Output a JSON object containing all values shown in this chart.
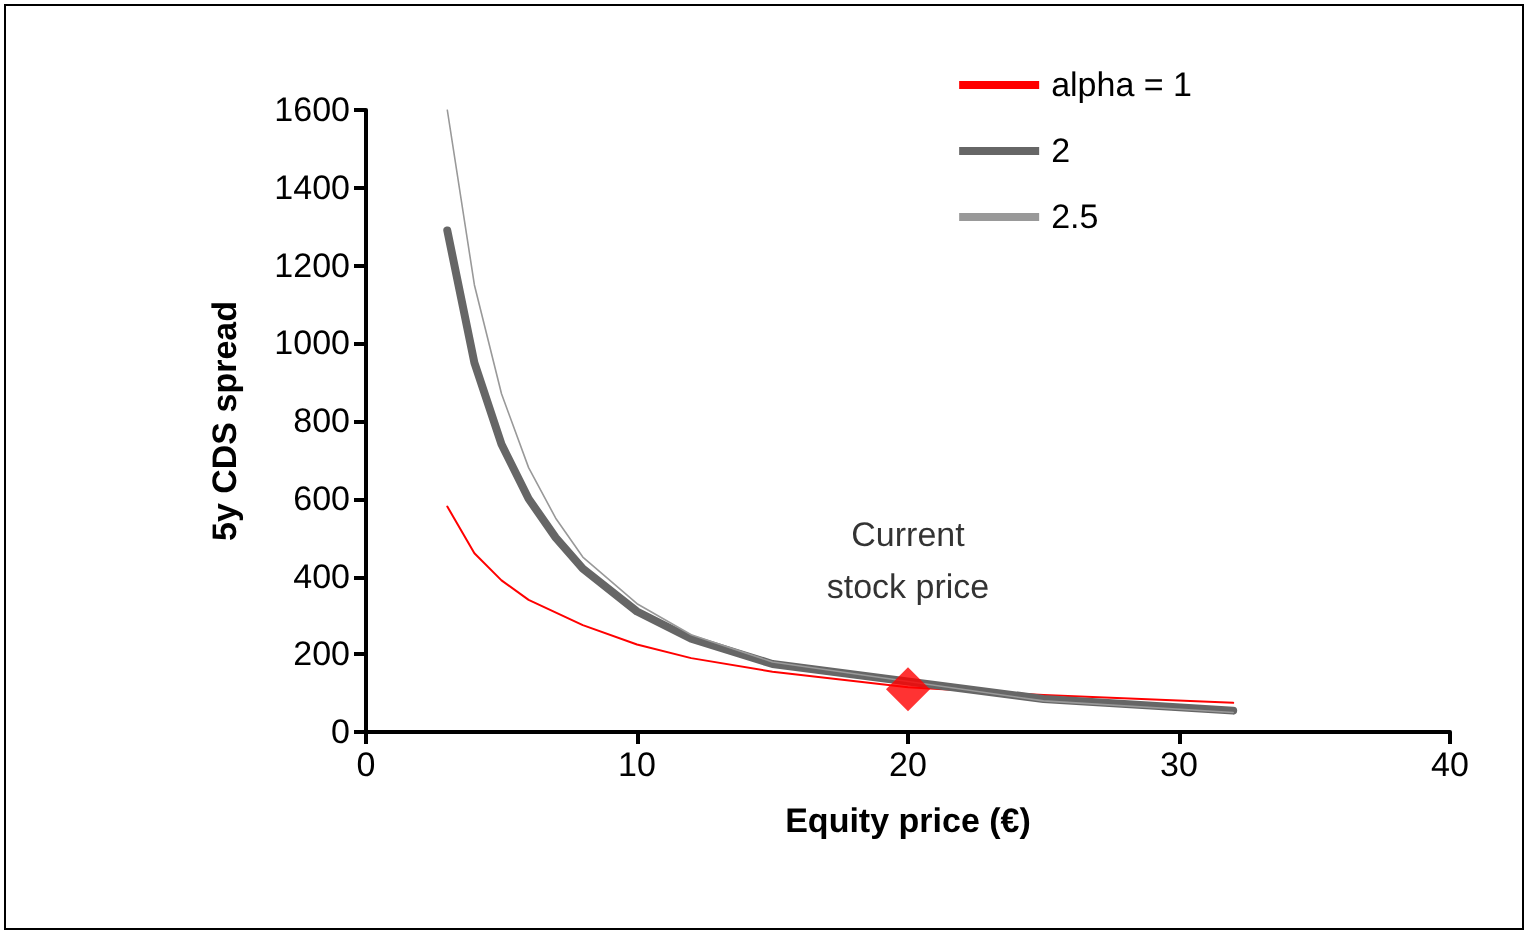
{
  "chart_data": {
    "type": "line",
    "xlabel": "Equity price (€)",
    "ylabel": "5y CDS spread",
    "xlim": [
      0,
      40
    ],
    "xticks": [
      0,
      10,
      20,
      30,
      40
    ],
    "ylim": [
      0,
      1600
    ],
    "yticks": [
      0,
      200,
      400,
      600,
      800,
      1000,
      1200,
      1400,
      1600
    ],
    "grid": false,
    "legend": "top right",
    "marker": "none",
    "line_style": "solid",
    "series": [
      {
        "name": "alpha = 1",
        "color": "#ff0000",
        "x": [
          3,
          4,
          5,
          6,
          8,
          10,
          12,
          15,
          20,
          25,
          32
        ],
        "values": [
          580,
          460,
          390,
          340,
          275,
          225,
          190,
          155,
          115,
          95,
          75
        ]
      },
      {
        "name": "2",
        "color": "#666666",
        "x": [
          3,
          4,
          5,
          6,
          7,
          8,
          10,
          12,
          15,
          25,
          32
        ],
        "values": [
          1290,
          950,
          740,
          600,
          500,
          420,
          310,
          240,
          175,
          85,
          55
        ]
      },
      {
        "name": "2.5",
        "color": "#999999",
        "x": [
          3,
          4,
          5,
          6,
          7,
          8,
          10,
          12,
          15,
          25,
          32
        ],
        "values": [
          1600,
          1150,
          870,
          680,
          550,
          450,
          330,
          250,
          180,
          80,
          50
        ]
      },
      {
        "type": "scatter",
        "marker": "diamond",
        "color": "#ff0000",
        "x": [
          20
        ],
        "values": [
          110
        ]
      }
    ],
    "annotations": [
      {
        "text": "Current\nstock price",
        "x": 20,
        "y": 110
      }
    ]
  }
}
